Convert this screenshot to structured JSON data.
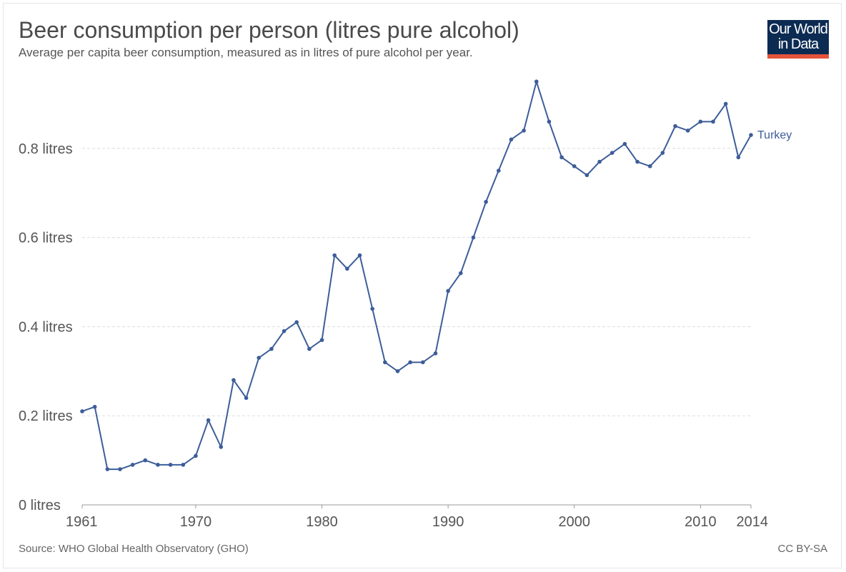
{
  "header": {
    "title": "Beer consumption per person (litres pure alcohol)",
    "subtitle": "Average per capita beer consumption, measured as in litres of pure alcohol per year."
  },
  "logo": {
    "line1": "Our World",
    "line2": "in Data"
  },
  "footer": {
    "source": "Source: WHO Global Health Observatory (GHO)",
    "license": "CC BY-SA"
  },
  "colors": {
    "series": "#3d5d99",
    "grid": "#dddddd",
    "logo_bg": "#0c2b53",
    "logo_accent": "#e5533b"
  },
  "chart_data": {
    "type": "line",
    "title": "Beer consumption per person (litres pure alcohol)",
    "xlabel": "",
    "ylabel": "",
    "xlim": [
      1961,
      2014
    ],
    "ylim": [
      0,
      0.95
    ],
    "y_ticks": [
      {
        "value": 0,
        "label": "0 litres"
      },
      {
        "value": 0.2,
        "label": "0.2 litres"
      },
      {
        "value": 0.4,
        "label": "0.4 litres"
      },
      {
        "value": 0.6,
        "label": "0.6 litres"
      },
      {
        "value": 0.8,
        "label": "0.8 litres"
      }
    ],
    "x_ticks": [
      {
        "value": 1961,
        "label": "1961"
      },
      {
        "value": 1970,
        "label": "1970"
      },
      {
        "value": 1980,
        "label": "1980"
      },
      {
        "value": 1990,
        "label": "1990"
      },
      {
        "value": 2000,
        "label": "2000"
      },
      {
        "value": 2010,
        "label": "2010"
      },
      {
        "value": 2014,
        "label": "2014"
      }
    ],
    "grid": true,
    "series": [
      {
        "name": "Turkey",
        "x": [
          1961,
          1962,
          1963,
          1964,
          1965,
          1966,
          1967,
          1968,
          1969,
          1970,
          1971,
          1972,
          1973,
          1974,
          1975,
          1976,
          1977,
          1978,
          1979,
          1980,
          1981,
          1982,
          1983,
          1984,
          1985,
          1986,
          1987,
          1988,
          1989,
          1990,
          1991,
          1992,
          1993,
          1994,
          1995,
          1996,
          1997,
          1998,
          1999,
          2000,
          2001,
          2002,
          2003,
          2004,
          2005,
          2006,
          2007,
          2008,
          2009,
          2010,
          2011,
          2012,
          2013,
          2014
        ],
        "values": [
          0.21,
          0.22,
          0.08,
          0.08,
          0.09,
          0.1,
          0.09,
          0.09,
          0.09,
          0.11,
          0.19,
          0.13,
          0.28,
          0.24,
          0.33,
          0.35,
          0.39,
          0.41,
          0.35,
          0.37,
          0.56,
          0.53,
          0.56,
          0.44,
          0.32,
          0.3,
          0.32,
          0.32,
          0.34,
          0.48,
          0.52,
          0.6,
          0.68,
          0.75,
          0.82,
          0.84,
          0.95,
          0.86,
          0.78,
          0.76,
          0.74,
          0.77,
          0.79,
          0.81,
          0.77,
          0.76,
          0.79,
          0.85,
          0.84,
          0.86,
          0.86,
          0.9,
          0.78,
          0.83
        ]
      }
    ]
  }
}
